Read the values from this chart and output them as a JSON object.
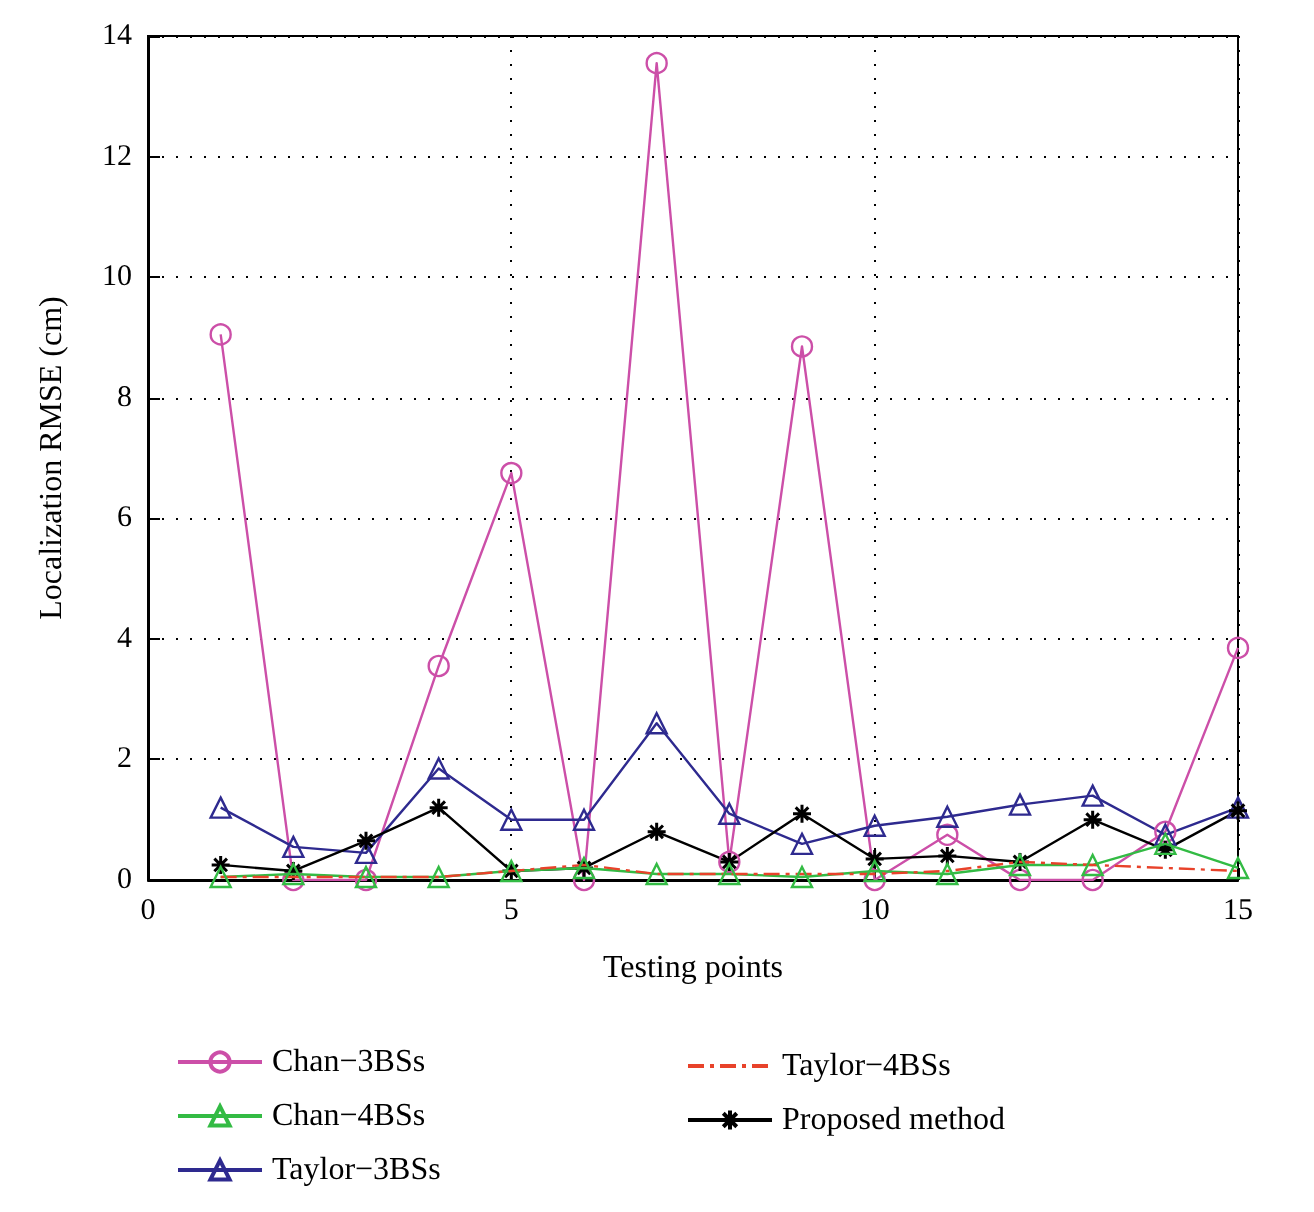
{
  "chart_data": {
    "type": "line",
    "xlabel": "Testing points",
    "ylabel": "Localization RMSE (cm)",
    "x": [
      1,
      2,
      3,
      4,
      5,
      6,
      7,
      8,
      9,
      10,
      11,
      12,
      13,
      14,
      15
    ],
    "xlim": [
      0,
      15
    ],
    "xticks": [
      0,
      5,
      10,
      15
    ],
    "ylim": [
      0,
      14
    ],
    "yticks": [
      0,
      2,
      4,
      6,
      8,
      10,
      12,
      14
    ],
    "grid": true,
    "legend": "bottom",
    "line_style": "solid",
    "series": [
      {
        "name": "Chan−3BSs",
        "color": "#cc4fa8",
        "marker": "circle",
        "values": [
          9.05,
          0,
          0,
          3.55,
          6.75,
          0,
          13.55,
          0.3,
          8.85,
          0,
          0.75,
          0,
          0,
          0.8,
          3.85
        ]
      },
      {
        "name": "Chan−4BSs",
        "color": "#33bb44",
        "marker": "triangle",
        "values": [
          0.05,
          0.1,
          0.05,
          0.05,
          0.15,
          0.2,
          0.1,
          0.1,
          0.05,
          0.15,
          0.1,
          0.25,
          0.25,
          0.6,
          0.2
        ]
      },
      {
        "name": "Taylor−3BSs",
        "color": "#2e2a8f",
        "marker": "triangle",
        "values": [
          1.2,
          0.55,
          0.45,
          1.85,
          1.0,
          1.0,
          2.6,
          1.1,
          0.6,
          0.9,
          1.05,
          1.25,
          1.4,
          0.75,
          1.2
        ]
      },
      {
        "name": "Taylor−4BSs",
        "color": "#e8422a",
        "marker": "none",
        "line_style": "dashdot",
        "values": [
          0.05,
          0.05,
          0.05,
          0.05,
          0.15,
          0.25,
          0.1,
          0.1,
          0.1,
          0.1,
          0.15,
          0.3,
          0.25,
          0.2,
          0.15
        ]
      },
      {
        "name": "Proposed method",
        "color": "#000000",
        "marker": "cross",
        "values": [
          0.25,
          0.15,
          0.65,
          1.2,
          0.15,
          0.2,
          0.8,
          0.3,
          1.1,
          0.35,
          0.4,
          0.3,
          1.0,
          0.5,
          1.15
        ]
      }
    ]
  }
}
